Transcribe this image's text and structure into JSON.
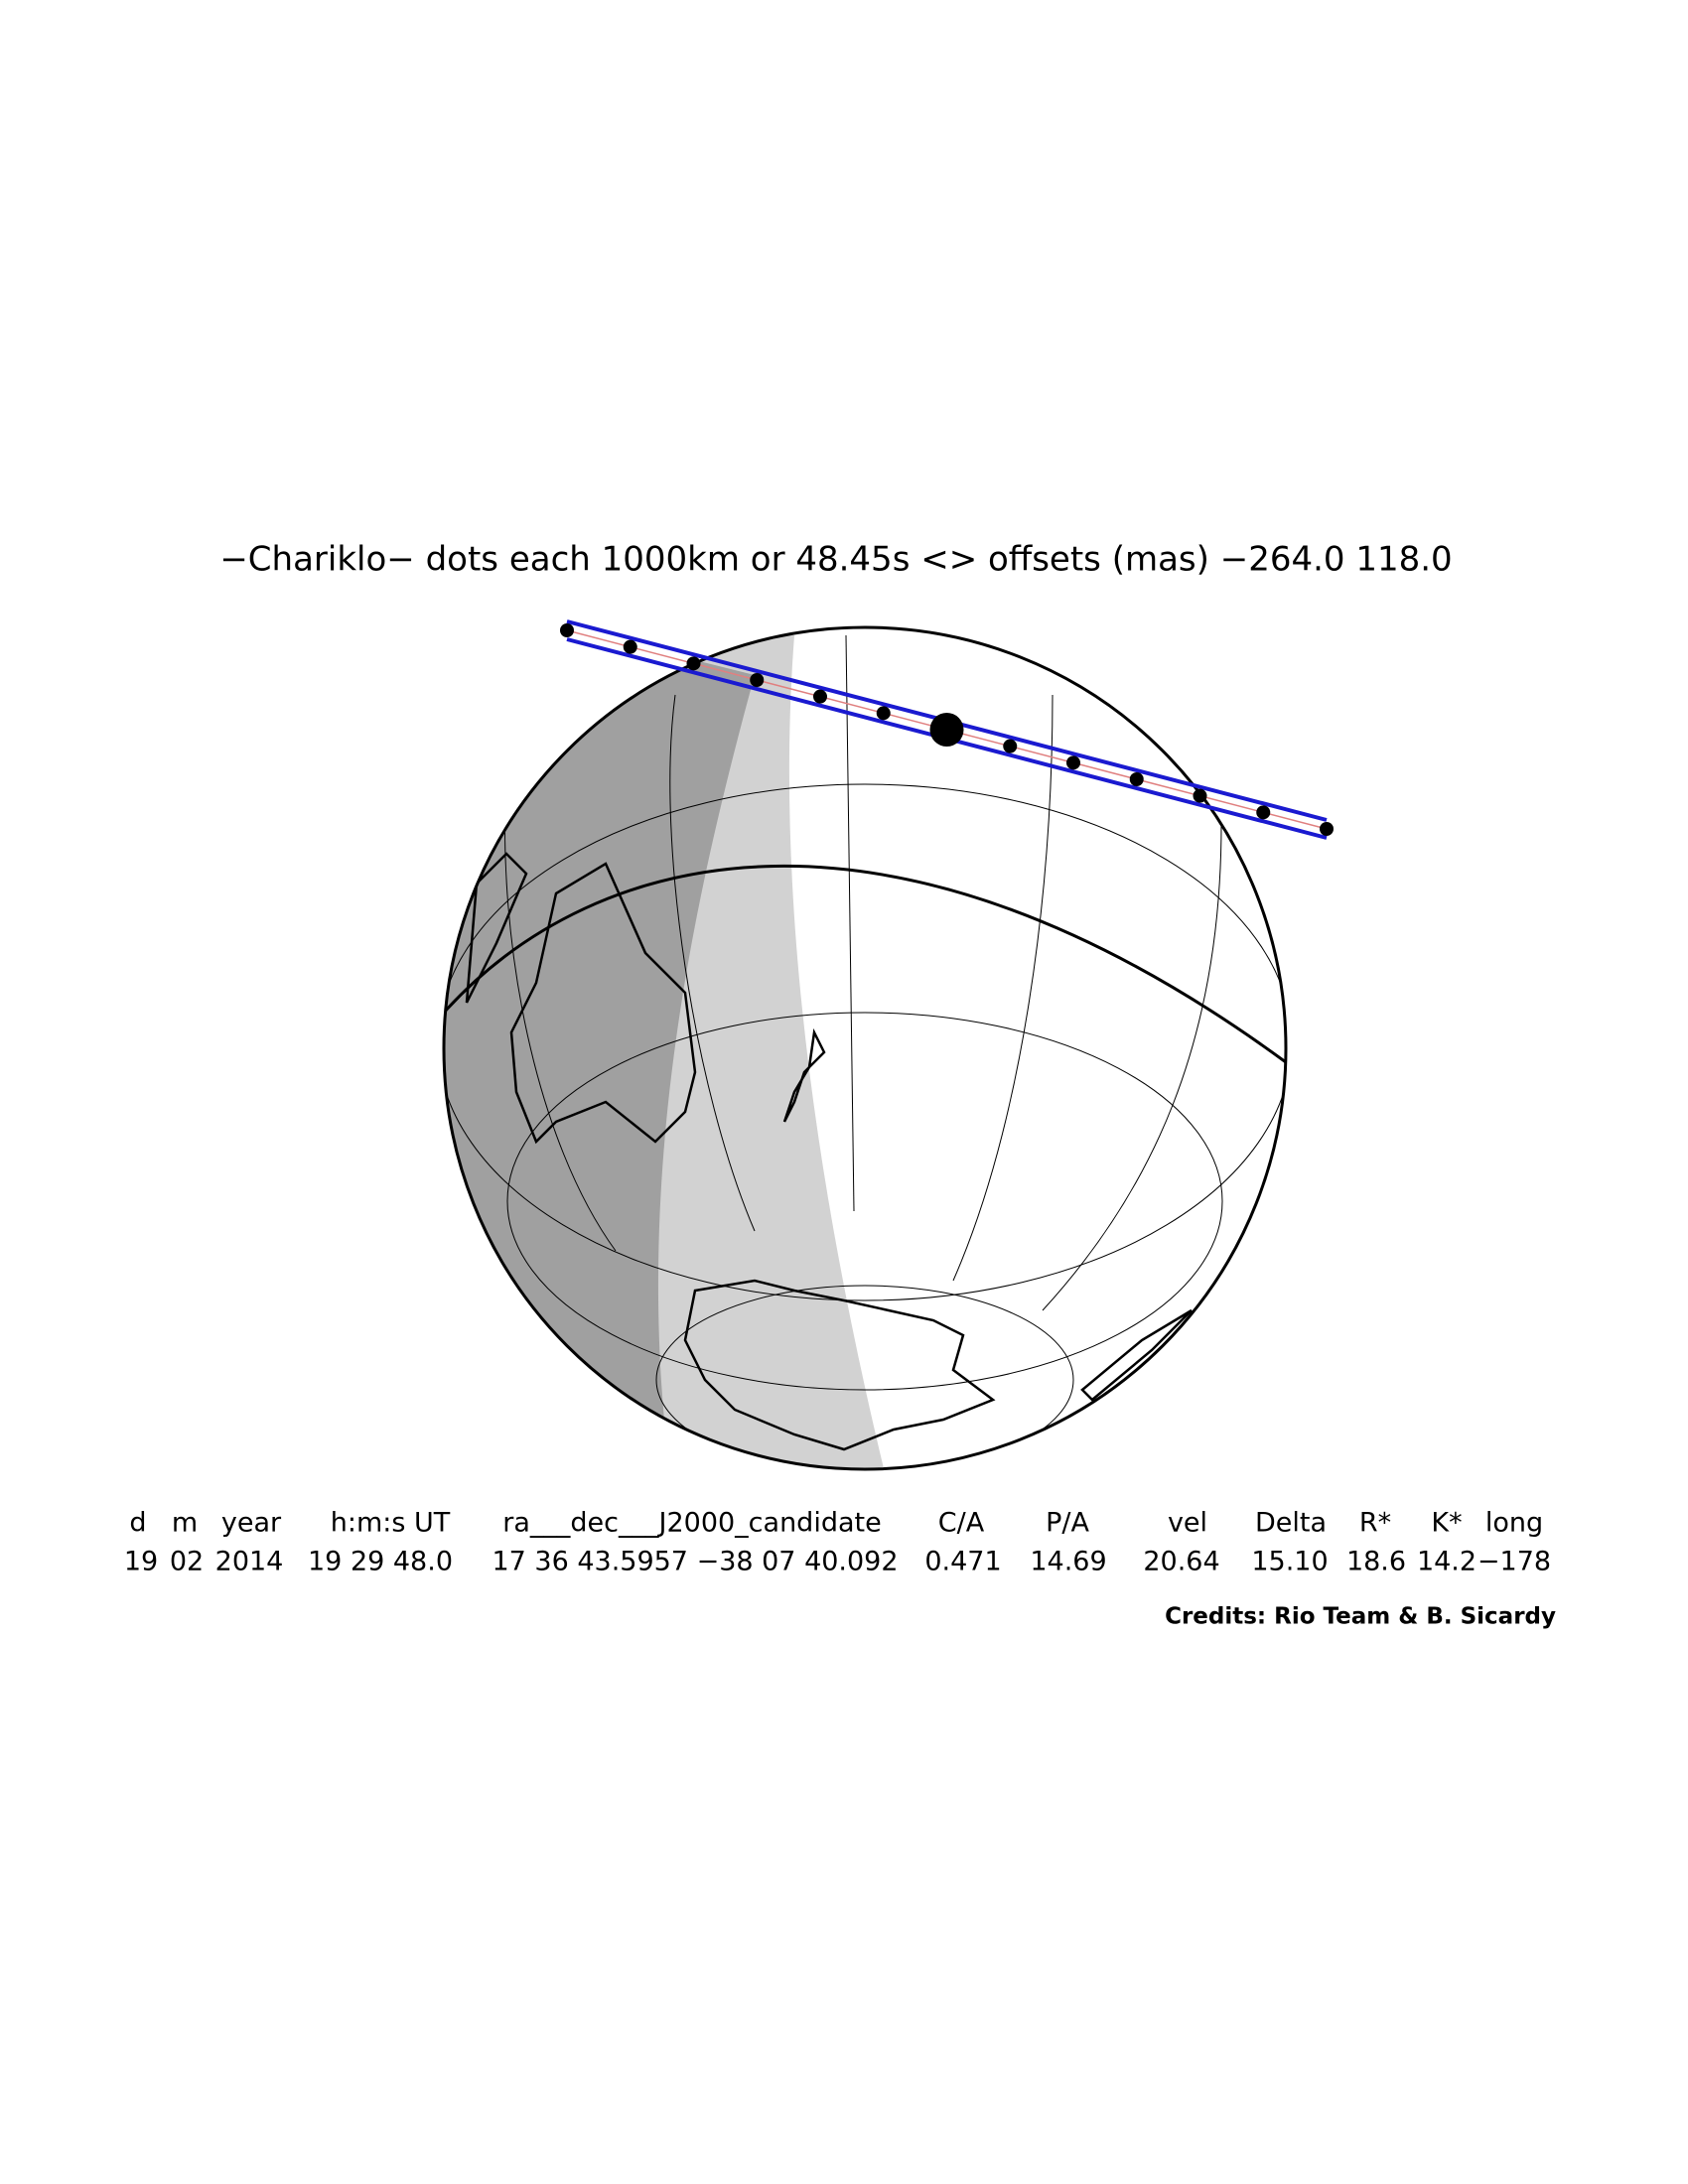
{
  "title": "−Chariklo− dots each 1000km or 48.45s <> offsets (mas) −264.0  118.0",
  "table": {
    "header": [
      "d",
      "m",
      "year",
      "h:m:s UT",
      "ra___dec___J2000_candidate",
      "C/A",
      "P/A",
      "vel",
      "Delta",
      "R*",
      "K*",
      "long"
    ],
    "row": [
      "19",
      "02",
      "2014",
      "19 29 48.0",
      "17 36 43.5957 −38 07 40.092",
      "0.471",
      "14.69",
      "20.64",
      "15.10",
      "18.6",
      "14.2",
      "−178"
    ]
  },
  "credits": "Credits: Rio Team & B. Sicardy"
}
